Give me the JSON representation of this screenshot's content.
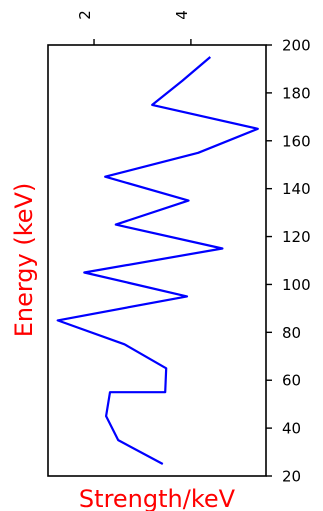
{
  "chart_data": {
    "type": "line",
    "orientation": "vertical",
    "xlabel": "Strength/keV",
    "ylabel": "Energy (keV)",
    "label_color": "#ff0000",
    "line_color": "#0000ff",
    "x_axis_position": "top",
    "y_axis_position": "right",
    "x_tick_rotation": "rotated",
    "xlim": [
      1.05,
      5.55
    ],
    "ylim": [
      20,
      200
    ],
    "x_ticks": [
      2,
      4
    ],
    "x_tick_labels": [
      "2",
      "4"
    ],
    "y_ticks": [
      20,
      40,
      60,
      80,
      100,
      120,
      140,
      160,
      180,
      200
    ],
    "y_tick_labels": [
      "20",
      "40",
      "60",
      "80",
      "100",
      "120",
      "140",
      "160",
      "180",
      "200"
    ],
    "grid": false,
    "series": [
      {
        "x": [
          3.42,
          2.5,
          2.25,
          2.33,
          3.47,
          3.49,
          2.63,
          1.25,
          3.92,
          1.8,
          4.65,
          2.45,
          3.95,
          2.23,
          4.15,
          5.38,
          3.2,
          3.82,
          4.4
        ],
        "y": [
          25,
          35,
          45,
          55,
          55,
          65,
          75,
          85,
          95,
          105,
          115,
          125,
          135,
          145,
          155,
          165,
          175,
          185,
          195
        ]
      }
    ]
  }
}
